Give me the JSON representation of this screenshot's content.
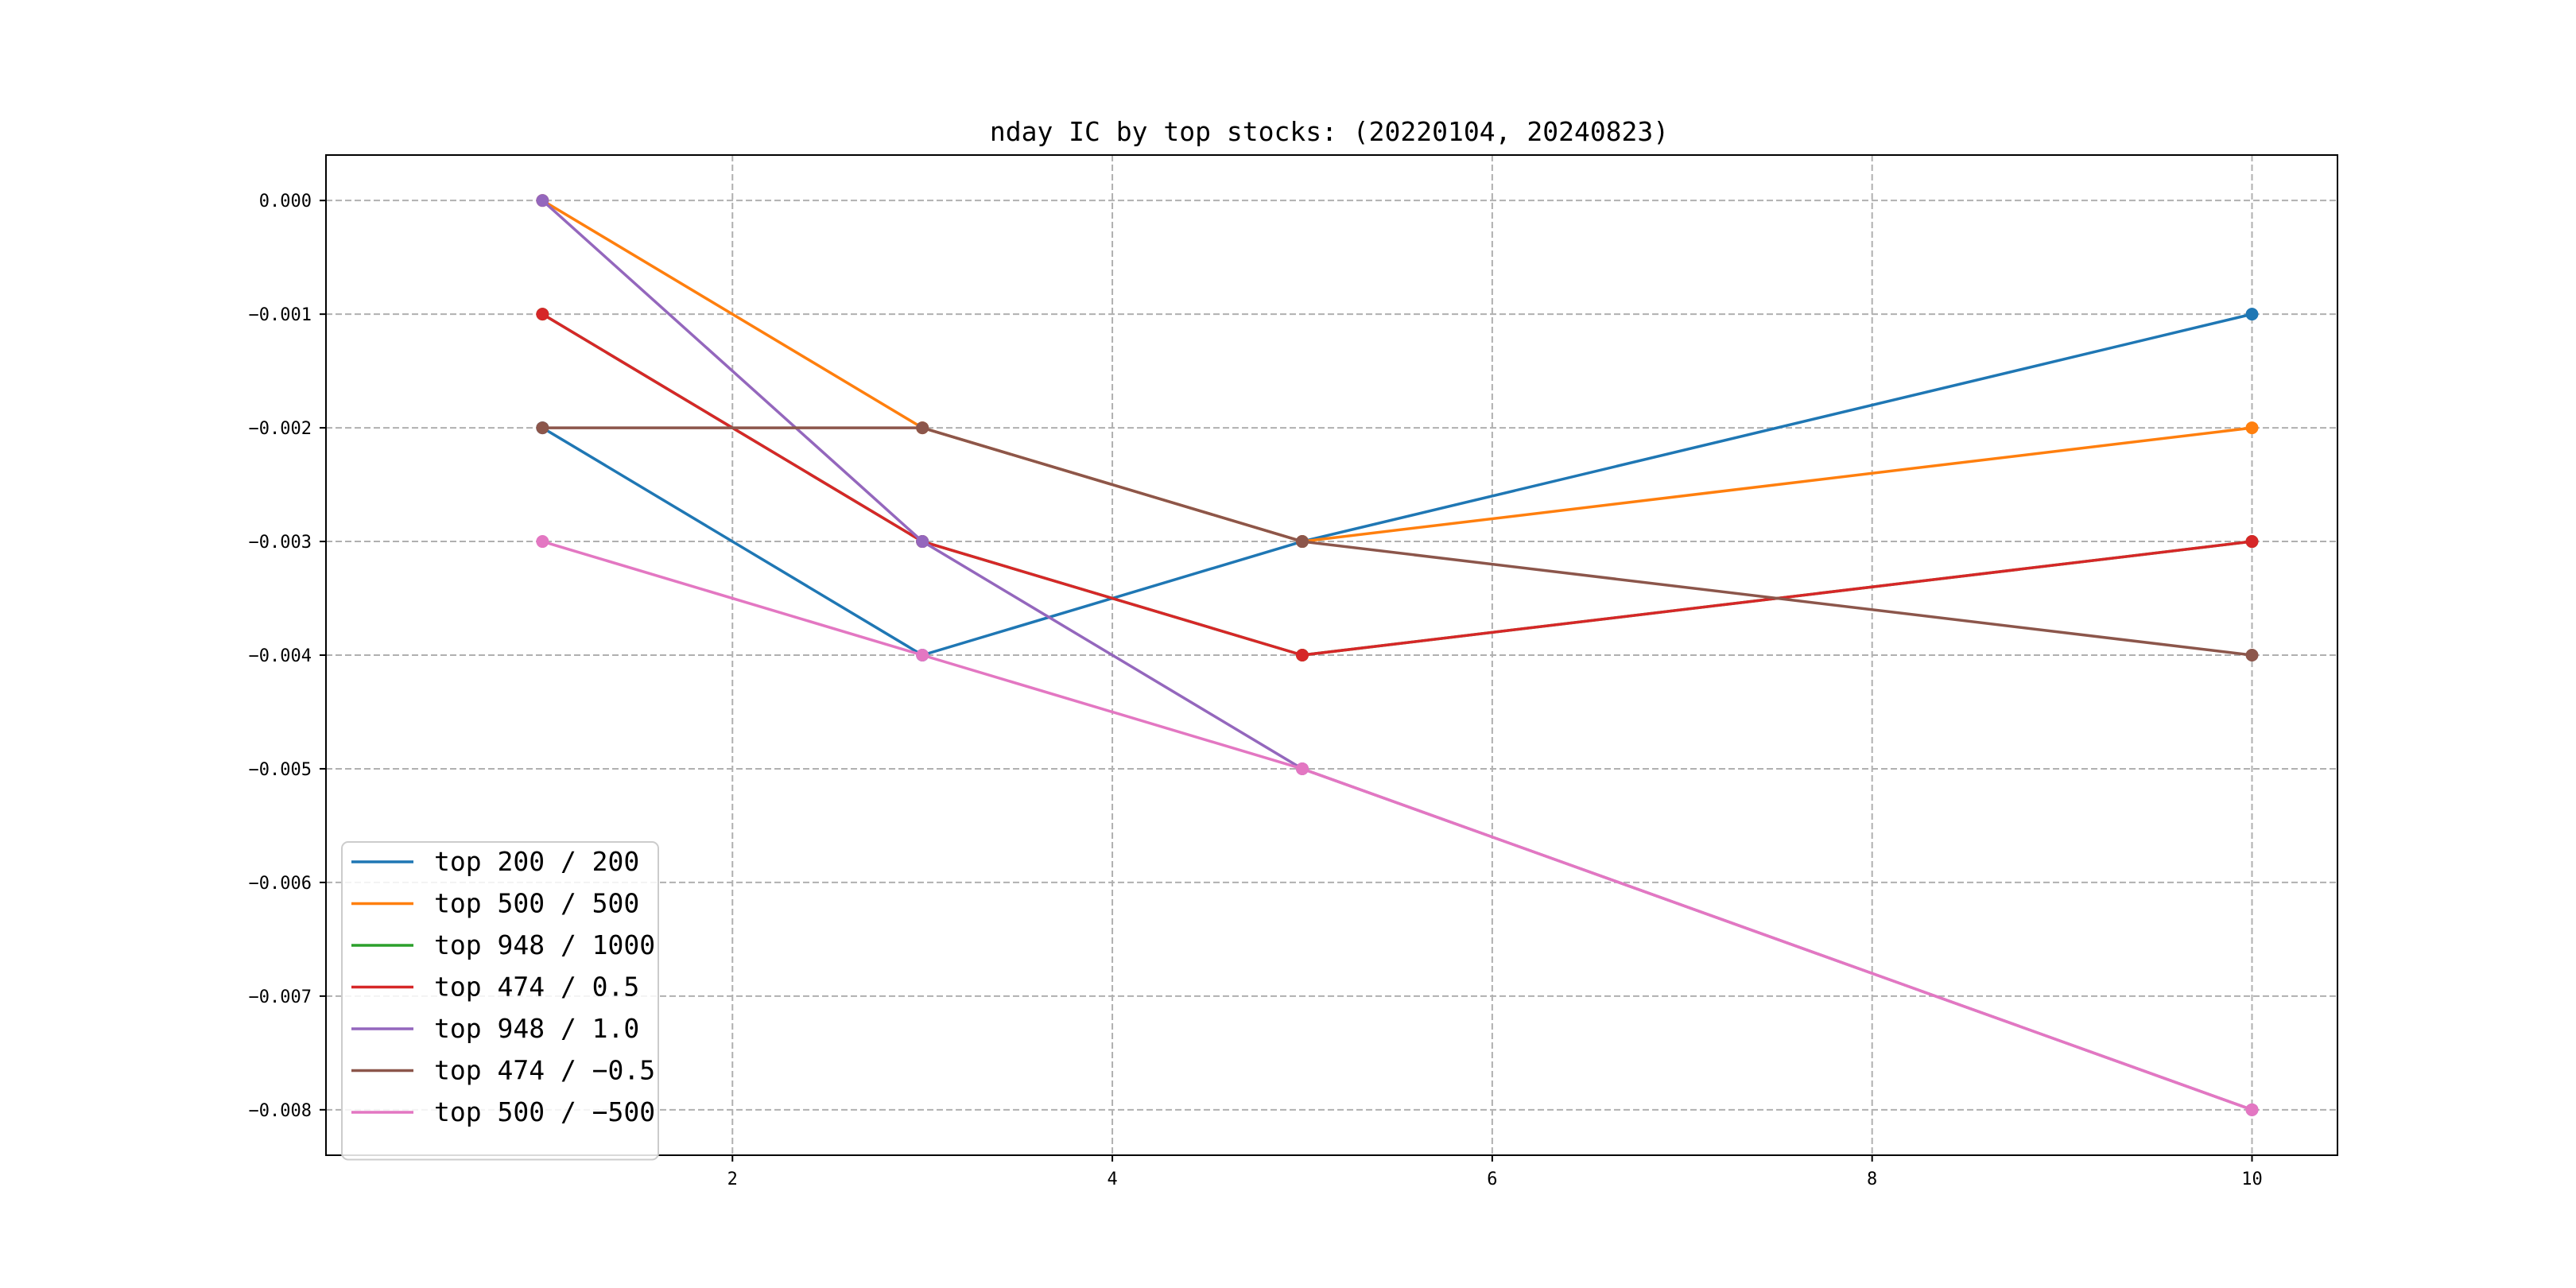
{
  "chart_data": {
    "type": "line",
    "title": "nday IC by top stocks: (20220104, 20240823)",
    "xlabel": "",
    "ylabel": "",
    "x": [
      1,
      3,
      5,
      10
    ],
    "xlim": [
      -0.14,
      10.45
    ],
    "ylim": [
      -0.0084,
      0.0004
    ],
    "x_ticks": [
      2,
      4,
      6,
      8,
      10
    ],
    "y_ticks": [
      0.0,
      -0.001,
      -0.002,
      -0.003,
      -0.004,
      -0.005,
      -0.006,
      -0.007,
      -0.008
    ],
    "x_tick_labels": [
      "2",
      "4",
      "6",
      "8",
      "10"
    ],
    "y_tick_labels": [
      "0.000",
      "−0.001",
      "−0.002",
      "−0.003",
      "−0.004",
      "−0.005",
      "−0.006",
      "−0.007",
      "−0.008"
    ],
    "grid": true,
    "legend_position": "lower-left",
    "series": [
      {
        "name": "top 200 / 200",
        "color": "#1f77b4",
        "values": [
          -0.002,
          -0.004,
          -0.003,
          -0.001
        ]
      },
      {
        "name": "top 500 / 500",
        "color": "#ff7f0e",
        "values": [
          0.0,
          -0.002,
          -0.003,
          -0.002
        ]
      },
      {
        "name": "top 948 / 1000",
        "color": "#2ca02c",
        "values": [
          -0.001,
          -0.003,
          -0.004,
          -0.003
        ]
      },
      {
        "name": "top 474 / 0.5",
        "color": "#d62728",
        "values": [
          -0.001,
          -0.003,
          -0.004,
          -0.003
        ]
      },
      {
        "name": "top 948 / 1.0",
        "color": "#9467bd",
        "values": [
          0.0,
          -0.003,
          -0.005,
          -0.008
        ]
      },
      {
        "name": "top 474 / −0.5",
        "color": "#8c564b",
        "values": [
          -0.002,
          -0.002,
          -0.003,
          -0.004
        ]
      },
      {
        "name": "top 500 / −500",
        "color": "#e377c2",
        "values": [
          -0.003,
          -0.004,
          -0.005,
          -0.008
        ]
      }
    ]
  }
}
